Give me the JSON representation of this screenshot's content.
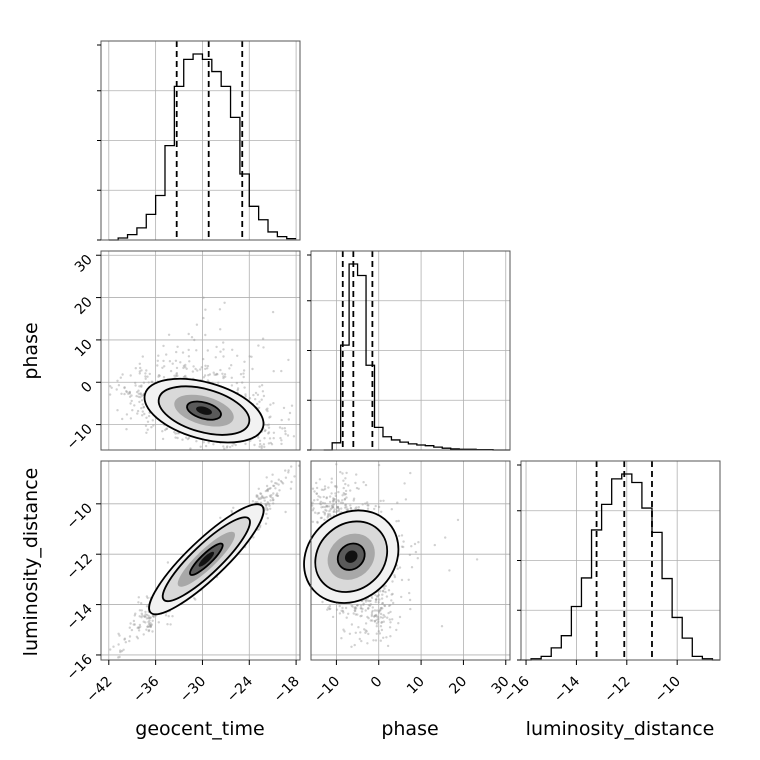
{
  "chart_data": {
    "type": "corner",
    "parameters": [
      "geocent_time",
      "phase",
      "luminosity_distance"
    ],
    "axis_labels": {
      "bottom": [
        "geocent_time",
        "phase",
        "luminosity_distance"
      ],
      "left": [
        "phase",
        "luminosity_distance"
      ]
    },
    "ranges": {
      "geocent_time": [
        -43,
        -17.5
      ],
      "phase": [
        -16,
        31
      ],
      "luminosity_distance": [
        -16.2,
        -8.3
      ]
    },
    "ticks": {
      "geocent_time": [
        -42,
        -36,
        -30,
        -24,
        -18
      ],
      "phase": [
        -10,
        0,
        10,
        20,
        30
      ],
      "phase_y": [
        -10,
        0,
        10,
        20,
        30
      ],
      "luminosity_distance": [
        -16,
        -14,
        -12,
        -10
      ],
      "luminosity_distance_y": [
        -16,
        -14,
        -12,
        -10
      ]
    },
    "tick_labels": {
      "geocent_time": [
        "−42",
        "−36",
        "−30",
        "−24",
        "−18"
      ],
      "phase": [
        "−10",
        "0",
        "10",
        "20",
        "30"
      ],
      "phase_y": [
        "−10",
        "0",
        "10",
        "20",
        "30"
      ],
      "luminosity_distance": [
        "−16",
        "−14",
        "−12",
        "−10"
      ],
      "luminosity_distance_y": [
        "−16",
        "−14",
        "−12",
        "−10"
      ]
    },
    "grid": true,
    "quantiles": {
      "geocent_time": [
        -33.3,
        -29.2,
        -24.9
      ],
      "phase": [
        -8.5,
        -6.0,
        -1.5
      ],
      "luminosity_distance": [
        -13.2,
        -12.1,
        -11.0
      ]
    },
    "histograms": {
      "geocent_time": {
        "edges": [
          -42.0,
          -40.8,
          -39.6,
          -38.4,
          -37.2,
          -36.0,
          -34.8,
          -33.6,
          -32.4,
          -31.2,
          -30.0,
          -28.8,
          -27.6,
          -26.4,
          -25.2,
          -24.0,
          -22.8,
          -21.6,
          -20.4,
          -19.2,
          -18.0
        ],
        "counts": [
          0,
          3,
          8,
          18,
          38,
          66,
          140,
          228,
          268,
          276,
          268,
          250,
          228,
          182,
          98,
          50,
          30,
          12,
          5,
          2
        ]
      },
      "phase": {
        "edges": [
          -13,
          -11,
          -9,
          -7,
          -5,
          -3,
          -1,
          1,
          3,
          5,
          7,
          9,
          11,
          13,
          15,
          17,
          19,
          21,
          23,
          25,
          27,
          29,
          31
        ],
        "counts": [
          0,
          20,
          292,
          518,
          486,
          236,
          63,
          37,
          28,
          22,
          17,
          14,
          12,
          8,
          5,
          3,
          2,
          2,
          1,
          1,
          0,
          0
        ]
      },
      "luminosity_distance": {
        "edges": [
          -16.2,
          -15.8,
          -15.4,
          -15.0,
          -14.6,
          -14.2,
          -13.8,
          -13.4,
          -13.0,
          -12.6,
          -12.2,
          -11.8,
          -11.4,
          -11.0,
          -10.6,
          -10.2,
          -9.8,
          -9.4,
          -9.0,
          -8.6,
          -8.3
        ],
        "counts": [
          0,
          2,
          6,
          20,
          40,
          88,
          135,
          214,
          256,
          298,
          306,
          292,
          250,
          210,
          134,
          70,
          36,
          6,
          2,
          0
        ]
      }
    },
    "pairs": [
      {
        "x": "geocent_time",
        "y": "phase",
        "center": [
          -29.8,
          -6.7
        ],
        "spread": [
          3.6,
          3.4
        ],
        "corr": -0.55
      },
      {
        "x": "geocent_time",
        "y": "luminosity_distance",
        "center": [
          -29.5,
          -12.2
        ],
        "spread": [
          3.4,
          1.05
        ],
        "corr": 0.96
      },
      {
        "x": "phase",
        "y": "luminosity_distance",
        "center": [
          -6.5,
          -12.1
        ],
        "spread": [
          3.2,
          1.1
        ],
        "corr": -0.55
      }
    ]
  }
}
